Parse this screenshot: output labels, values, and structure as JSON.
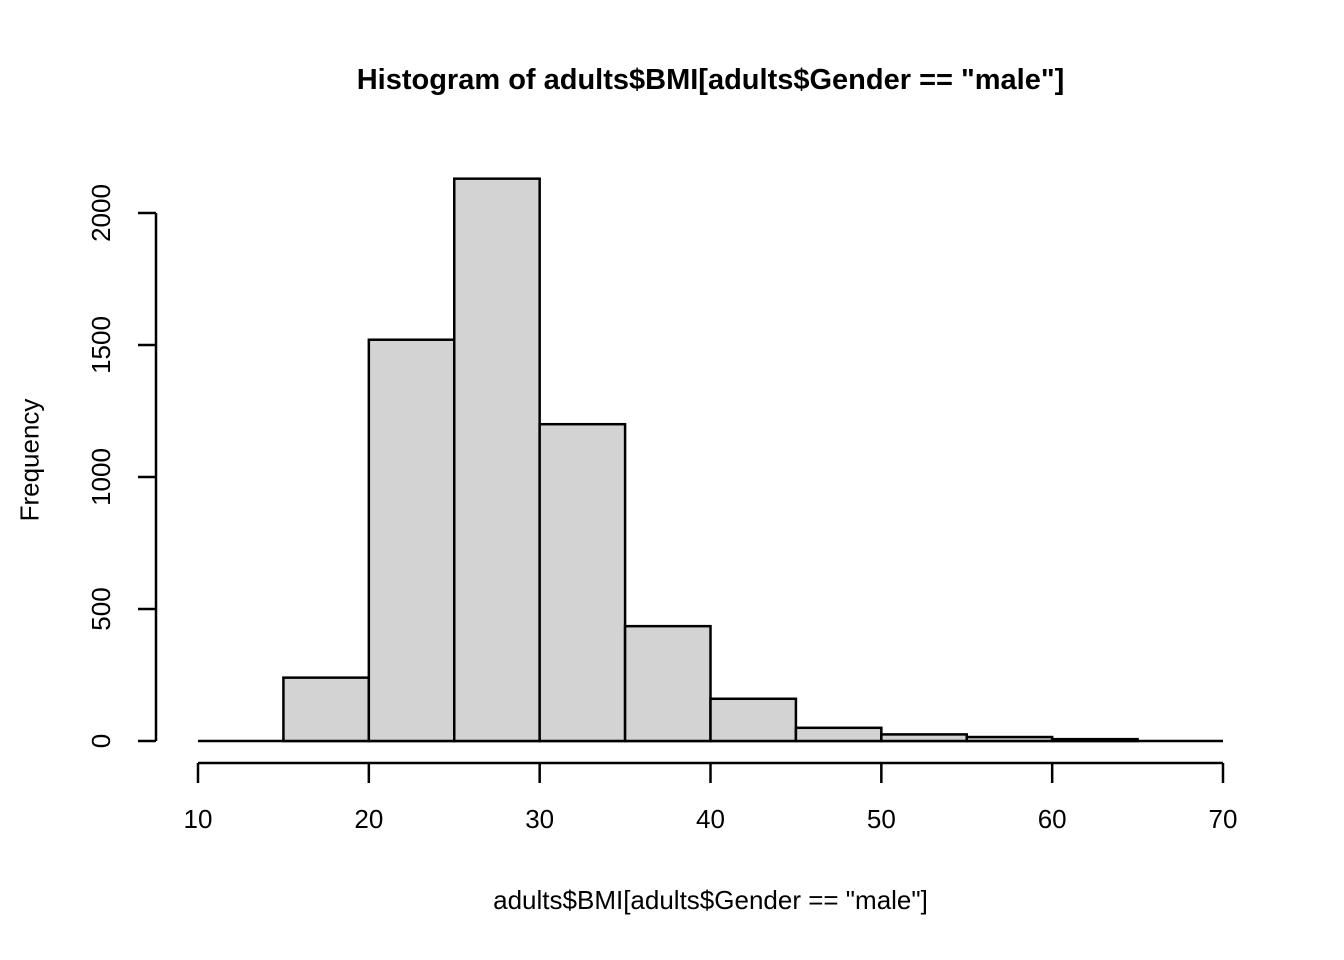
{
  "chart_data": {
    "type": "bar",
    "subtype": "histogram",
    "title": "Histogram of adults$BMI[adults$Gender == \"male\"]",
    "xlabel": "adults$BMI[adults$Gender == \"male\"]",
    "ylabel": "Frequency",
    "bin_edges": [
      10,
      15,
      20,
      25,
      30,
      35,
      40,
      45,
      50,
      55,
      60,
      65,
      70
    ],
    "counts": [
      0,
      240,
      1520,
      2130,
      1200,
      435,
      160,
      50,
      25,
      15,
      7,
      0
    ],
    "x_ticks": [
      10,
      20,
      30,
      40,
      50,
      60,
      70
    ],
    "y_ticks": [
      0,
      500,
      1000,
      1500,
      2000
    ],
    "xlim": [
      10,
      70
    ],
    "ylim": [
      0,
      2130
    ],
    "grid": false,
    "legend": "none",
    "colors": {
      "bar_fill": "#d3d3d3",
      "bar_border": "#000000",
      "axis": "#000000",
      "text": "#000000",
      "background": "#ffffff"
    }
  }
}
